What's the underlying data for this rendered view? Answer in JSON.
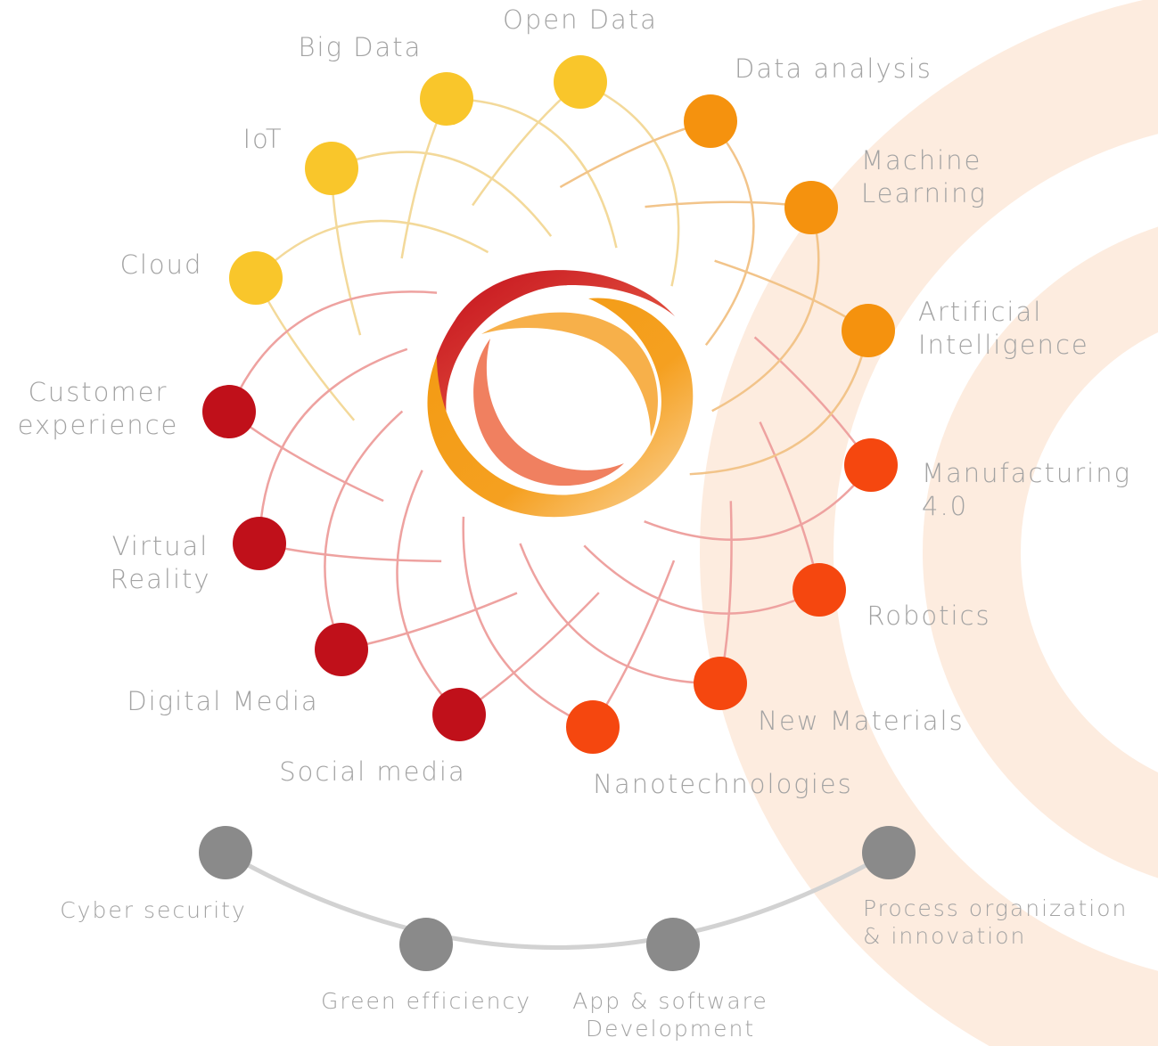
{
  "nodes": [
    {
      "label": [
        "Open Data"
      ]
    },
    {
      "label": [
        "Big Data"
      ]
    },
    {
      "label": [
        "IoT"
      ]
    },
    {
      "label": [
        "Cloud"
      ]
    },
    {
      "label": [
        "Customer",
        "experience"
      ]
    },
    {
      "label": [
        "Virtual",
        "Reality"
      ]
    },
    {
      "label": [
        "Digital Media"
      ]
    },
    {
      "label": [
        "Social media"
      ]
    },
    {
      "label": [
        "Nanotechnologies"
      ]
    },
    {
      "label": [
        "New Materials"
      ]
    },
    {
      "label": [
        "Robotics"
      ]
    },
    {
      "label": [
        "Manufacturing",
        "4.0"
      ]
    },
    {
      "label": [
        "Artificial",
        "Intelligence"
      ]
    },
    {
      "label": [
        "Machine",
        "Learning"
      ]
    },
    {
      "label": [
        "Data analysis"
      ]
    }
  ],
  "extra_nodes": [
    {
      "label": [
        "Cyber security"
      ]
    },
    {
      "label": [
        "Green efficiency"
      ]
    },
    {
      "label": [
        "App & software",
        "Development"
      ]
    },
    {
      "label": [
        "Process organization",
        "& innovation"
      ]
    }
  ]
}
